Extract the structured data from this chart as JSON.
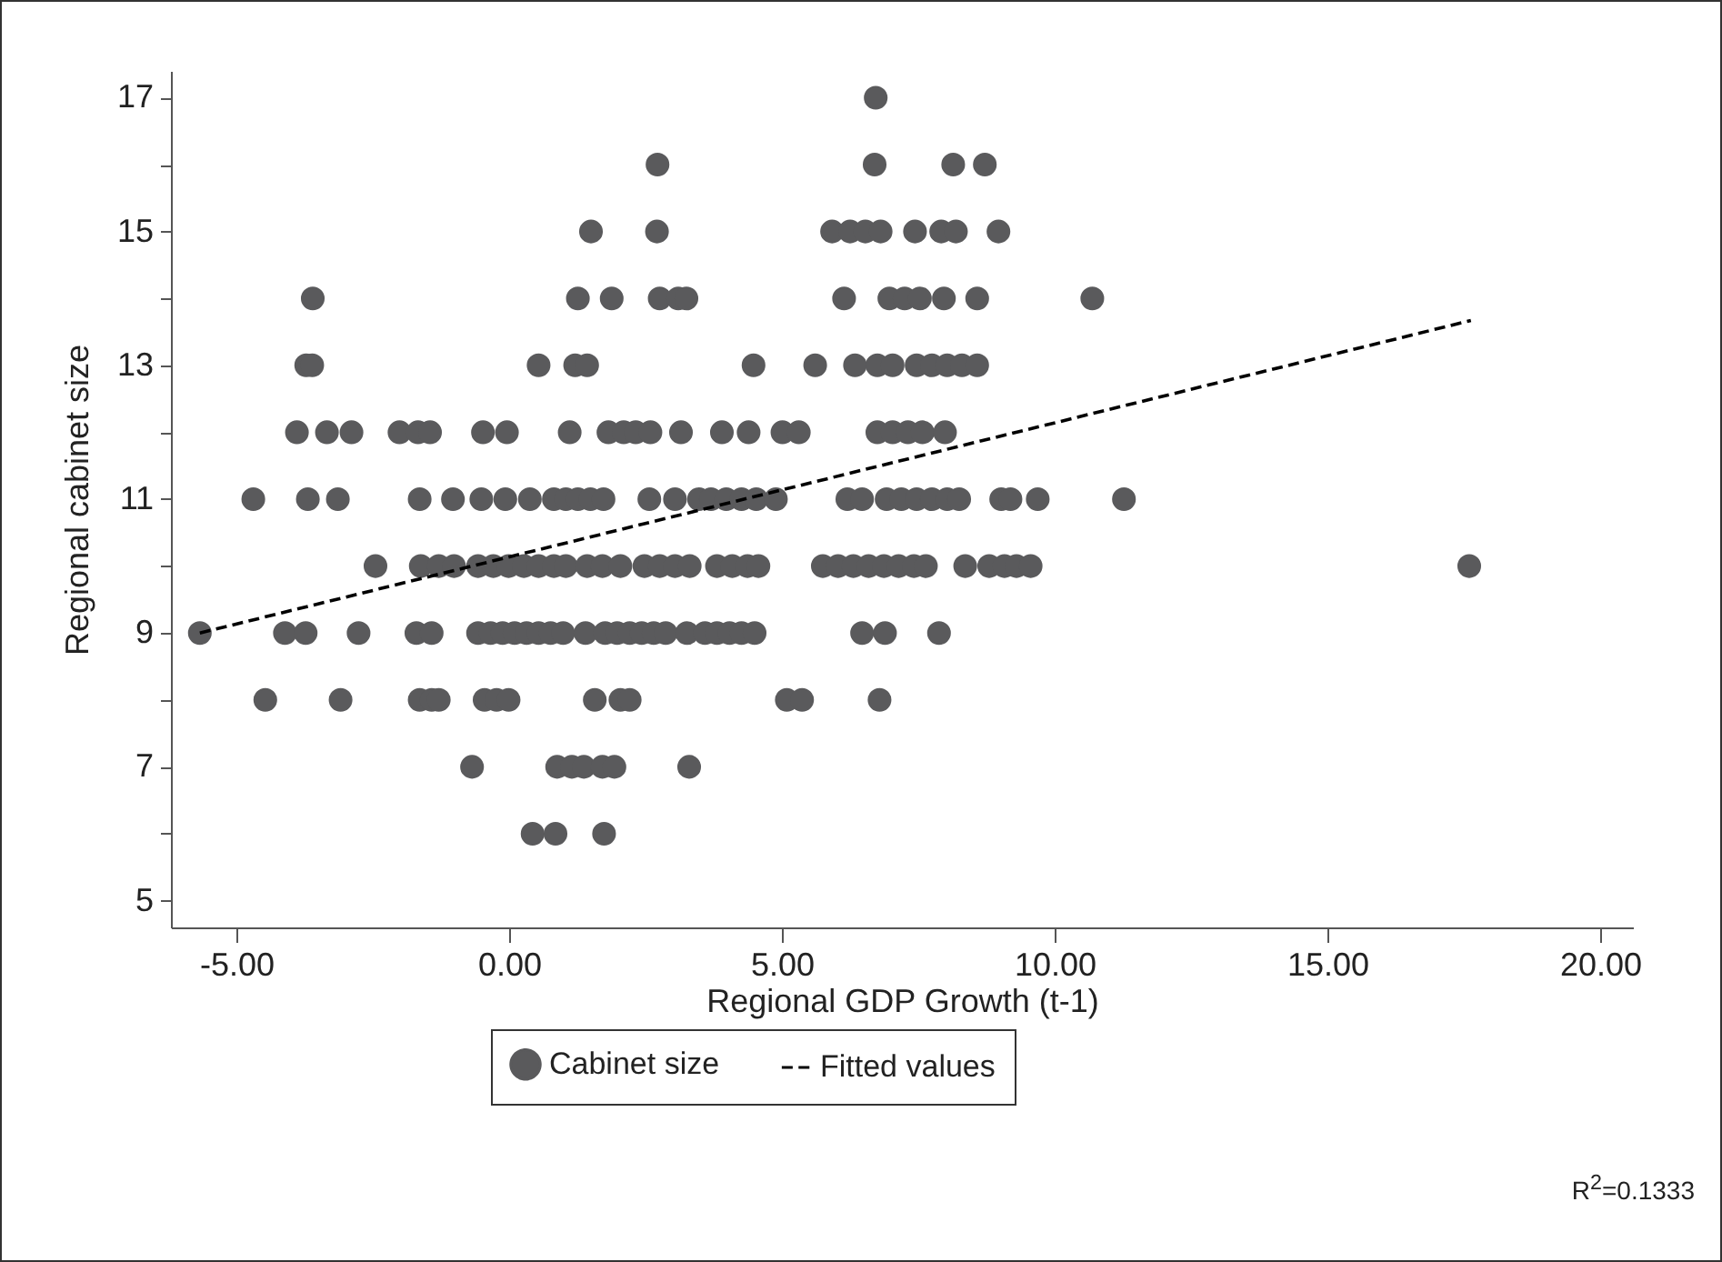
{
  "chart_data": {
    "type": "scatter",
    "xlabel": "Regional GDP Growth (t-1)",
    "ylabel": "Regional cabinet size",
    "legend": "bottom",
    "xlim": [
      -6.2,
      20.6
    ],
    "xticks": [
      {
        "value": -5,
        "label": "-5.00"
      },
      {
        "value": 0,
        "label": "0.00"
      },
      {
        "value": 5,
        "label": "5.00"
      },
      {
        "value": 10,
        "label": "10.00"
      },
      {
        "value": 15,
        "label": "15.00"
      },
      {
        "value": 20,
        "label": "20.00"
      }
    ],
    "ylim": [
      4.6,
      17.4
    ],
    "yticks": [
      5,
      {
        "value": 6,
        "label": null
      },
      7,
      {
        "value": 8,
        "label": null
      },
      9,
      {
        "value": 10,
        "label": null
      },
      11,
      {
        "value": 12,
        "label": null
      },
      13,
      {
        "value": 14,
        "label": null
      },
      15,
      {
        "value": 16,
        "label": null
      },
      17
    ],
    "series": [
      {
        "name": "Cabinet size",
        "marker": "circle",
        "color": "#5a5a5c",
        "x": [
          6.72,
          2.72,
          6.7,
          8.14,
          8.72,
          1.5,
          2.71,
          5.92,
          6.25,
          6.53,
          6.81,
          7.44,
          7.92,
          8.19,
          8.97,
          -3.6,
          1.26,
          1.88,
          2.76,
          3.1,
          3.25,
          6.14,
          6.97,
          7.25,
          7.53,
          7.97,
          8.58,
          10.69,
          -3.72,
          -3.61,
          0.54,
          1.21,
          1.43,
          4.48,
          5.61,
          6.34,
          6.75,
          7.03,
          7.47,
          7.75,
          8.03,
          8.3,
          8.58,
          -3.89,
          -3.34,
          -2.89,
          -2.01,
          -1.67,
          -1.45,
          -0.48,
          -0.04,
          1.11,
          1.82,
          2.1,
          2.32,
          2.59,
          3.15,
          3.9,
          4.39,
          5.01,
          5.31,
          6.75,
          7.03,
          7.31,
          7.58,
          7.99,
          9.69,
          -4.69,
          -3.69,
          -3.14,
          -1.64,
          -1.03,
          -0.51,
          -0.07,
          0.38,
          0.82,
          1.04,
          1.26,
          1.49,
          1.73,
          2.57,
          3.04,
          3.48,
          3.7,
          3.98,
          4.26,
          4.53,
          4.89,
          6.2,
          6.47,
          6.92,
          7.19,
          7.47,
          7.75,
          8.03,
          8.25,
          9.02,
          9.19,
          11.27,
          -2.45,
          -1.62,
          -1.29,
          -1.01,
          -0.57,
          -0.29,
          -0.01,
          0.27,
          0.54,
          0.82,
          1.04,
          1.43,
          1.71,
          2.04,
          2.48,
          2.76,
          3.04,
          3.31,
          3.81,
          4.09,
          4.37,
          4.57,
          5.75,
          6.03,
          6.31,
          6.59,
          6.87,
          7.14,
          7.42,
          7.64,
          8.36,
          8.8,
          9.08,
          9.3,
          9.56,
          17.6,
          -5.67,
          -4.11,
          -3.73,
          -2.76,
          -1.7,
          -1.42,
          -0.57,
          -0.34,
          -0.12,
          0.1,
          0.32,
          0.54,
          0.76,
          0.99,
          1.4,
          1.76,
          1.98,
          2.21,
          2.43,
          2.65,
          2.87,
          3.26,
          3.59,
          3.81,
          4.04,
          4.26,
          4.5,
          6.47,
          6.89,
          7.88,
          -4.47,
          -3.09,
          -1.64,
          -1.42,
          -1.29,
          -0.45,
          -0.23,
          -0.01,
          1.57,
          2.04,
          2.21,
          5.09,
          5.37,
          6.79,
          -0.68,
          0.88,
          1.15,
          1.37,
          1.71,
          1.93,
          3.3,
          0.43,
          0.85,
          1.74
        ],
        "values": [
          17,
          16,
          16,
          16,
          16,
          15,
          15,
          15,
          15,
          15,
          15,
          15,
          15,
          15,
          15,
          14,
          14,
          14,
          14,
          14,
          14,
          14,
          14,
          14,
          14,
          14,
          14,
          14,
          13,
          13,
          13,
          13,
          13,
          13,
          13,
          13,
          13,
          13,
          13,
          13,
          13,
          13,
          13,
          12,
          12,
          12,
          12,
          12,
          12,
          12,
          12,
          12,
          12,
          12,
          12,
          12,
          12,
          12,
          12,
          12,
          12,
          12,
          12,
          12,
          12,
          12,
          11,
          11,
          11,
          11,
          11,
          11,
          11,
          11,
          11,
          11,
          11,
          11,
          11,
          11,
          11,
          11,
          11,
          11,
          11,
          11,
          11,
          11,
          11,
          11,
          11,
          11,
          11,
          11,
          11,
          11,
          11,
          11,
          11,
          10,
          10,
          10,
          10,
          10,
          10,
          10,
          10,
          10,
          10,
          10,
          10,
          10,
          10,
          10,
          10,
          10,
          10,
          10,
          10,
          10,
          10,
          10,
          10,
          10,
          10,
          10,
          10,
          10,
          10,
          10,
          10,
          10,
          10,
          10,
          10,
          9,
          9,
          9,
          9,
          9,
          9,
          9,
          9,
          9,
          9,
          9,
          9,
          9,
          9,
          9,
          9,
          9,
          9,
          9,
          9,
          9,
          9,
          9,
          9,
          9,
          9,
          9,
          9,
          9,
          9,
          8,
          8,
          8,
          8,
          8,
          8,
          8,
          8,
          8,
          8,
          8,
          8,
          8,
          8,
          7,
          7,
          7,
          7,
          7,
          7,
          7,
          6,
          6,
          6
        ]
      },
      {
        "name": "Fitted values",
        "type": "line",
        "color": "#000000",
        "line_style": "dashed",
        "x": [
          -5.67,
          17.63
        ],
        "values": [
          9.0,
          13.67
        ]
      }
    ],
    "annotations": [
      "R$^{2}$=0.1333"
    ]
  }
}
